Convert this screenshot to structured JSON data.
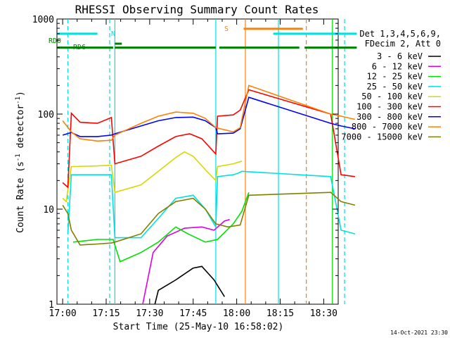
{
  "chart_data": {
    "type": "line",
    "title": "RHESSI Observing Summary Count Rates",
    "xlabel": "Start Time (25-May-10 16:58:02)",
    "ylabel": "Count Rate (s⁻¹ detector⁻¹)",
    "yscale": "log",
    "ylim": [
      1,
      1000
    ],
    "xlim": [
      "16:58:02",
      "18:35:00"
    ],
    "x_ticks": [
      "17:00",
      "17:15",
      "17:30",
      "17:45",
      "18:00",
      "18:15",
      "18:30"
    ],
    "y_ticks": [
      "1",
      "10",
      "100",
      "1000"
    ],
    "legend_header": [
      "Det 1,3,4,5,6,9,",
      "FDecim 2, Att 0"
    ],
    "legend_position": "right",
    "series": [
      {
        "name": "3 - 6 keV",
        "color": "#000000",
        "points": [
          [
            17.53,
            1.0
          ],
          [
            17.55,
            1.4
          ],
          [
            17.65,
            1.8
          ],
          [
            17.75,
            2.4
          ],
          [
            17.8,
            2.5
          ],
          [
            17.87,
            1.8
          ],
          [
            17.93,
            1.2
          ]
        ]
      },
      {
        "name": "6 - 12 keV",
        "color": "#e000e0",
        "points": [
          [
            17.46,
            1.0
          ],
          [
            17.52,
            3.5
          ],
          [
            17.6,
            5.2
          ],
          [
            17.7,
            6.3
          ],
          [
            17.8,
            6.5
          ],
          [
            17.87,
            6.0
          ],
          [
            17.93,
            7.5
          ],
          [
            17.96,
            7.8
          ]
        ]
      },
      {
        "name": "12 - 25 keV",
        "color": "#00e000",
        "points": [
          [
            17.06,
            4.5
          ],
          [
            17.2,
            4.8
          ],
          [
            17.29,
            4.8
          ],
          [
            17.33,
            2.8
          ],
          [
            17.45,
            3.5
          ],
          [
            17.55,
            4.5
          ],
          [
            17.65,
            6.5
          ],
          [
            17.72,
            5.5
          ],
          [
            17.82,
            4.5
          ],
          [
            17.89,
            4.8
          ],
          [
            17.98,
            7.0
          ],
          [
            18.03,
            9.5
          ],
          [
            18.07,
            15.0
          ]
        ]
      },
      {
        "name": "25 - 50 keV",
        "color": "#00e0e0",
        "points": [
          [
            17.03,
            5.5
          ],
          [
            17.05,
            23.0
          ],
          [
            17.2,
            23.0
          ],
          [
            17.28,
            23.0
          ],
          [
            17.3,
            5.0
          ],
          [
            17.45,
            5.0
          ],
          [
            17.55,
            8.0
          ],
          [
            17.65,
            13.0
          ],
          [
            17.75,
            14.0
          ],
          [
            17.82,
            10.0
          ],
          [
            17.88,
            6.5
          ],
          [
            17.89,
            22.0
          ],
          [
            17.98,
            23.0
          ],
          [
            18.01,
            24.0
          ],
          [
            18.03,
            25.0
          ],
          [
            18.54,
            22.0
          ],
          [
            18.6,
            6.0
          ],
          [
            18.68,
            5.5
          ]
        ]
      },
      {
        "name": "50 - 100 keV",
        "color": "#d8d800",
        "points": [
          [
            17.0,
            13.0
          ],
          [
            17.02,
            12.0
          ],
          [
            17.05,
            28.0
          ],
          [
            17.2,
            28.5
          ],
          [
            17.28,
            29.0
          ],
          [
            17.3,
            15.0
          ],
          [
            17.45,
            18.0
          ],
          [
            17.55,
            25.0
          ],
          [
            17.65,
            35.0
          ],
          [
            17.7,
            40.0
          ],
          [
            17.75,
            36.0
          ],
          [
            17.82,
            26.0
          ],
          [
            17.88,
            20.0
          ],
          [
            17.89,
            28.0
          ],
          [
            17.98,
            30.0
          ],
          [
            18.03,
            32.0
          ]
        ]
      },
      {
        "name": "100 - 300 keV",
        "color": "#ff0000",
        "points": [
          [
            17.0,
            19.0
          ],
          [
            17.03,
            17.0
          ],
          [
            17.05,
            102.0
          ],
          [
            17.1,
            82.0
          ],
          [
            17.2,
            80.0
          ],
          [
            17.28,
            92.0
          ],
          [
            17.3,
            30.0
          ],
          [
            17.45,
            36.0
          ],
          [
            17.55,
            46.0
          ],
          [
            17.65,
            58.0
          ],
          [
            17.73,
            62.0
          ],
          [
            17.8,
            55.0
          ],
          [
            17.88,
            38.0
          ],
          [
            17.89,
            95.0
          ],
          [
            17.98,
            98.0
          ],
          [
            18.02,
            110.0
          ],
          [
            18.07,
            180.0
          ],
          [
            18.54,
            100.0
          ],
          [
            18.6,
            23.0
          ],
          [
            18.68,
            22.0
          ]
        ]
      },
      {
        "name": "300 - 800 keV",
        "color": "#0000ff",
        "points": [
          [
            17.0,
            60.0
          ],
          [
            17.05,
            64.0
          ],
          [
            17.1,
            58.0
          ],
          [
            17.2,
            58.0
          ],
          [
            17.28,
            60.0
          ],
          [
            17.3,
            62.0
          ],
          [
            17.45,
            75.0
          ],
          [
            17.55,
            85.0
          ],
          [
            17.65,
            92.0
          ],
          [
            17.75,
            93.0
          ],
          [
            17.82,
            85.0
          ],
          [
            17.88,
            72.0
          ],
          [
            17.89,
            62.0
          ],
          [
            17.98,
            63.0
          ],
          [
            18.02,
            70.0
          ],
          [
            18.07,
            150.0
          ],
          [
            18.54,
            80.0
          ],
          [
            18.6,
            75.0
          ],
          [
            18.68,
            70.0
          ]
        ]
      },
      {
        "name": "800 - 7000 keV",
        "color": "#ff8000",
        "points": [
          [
            17.0,
            85.0
          ],
          [
            17.05,
            65.0
          ],
          [
            17.1,
            55.0
          ],
          [
            17.2,
            52.0
          ],
          [
            17.28,
            53.0
          ],
          [
            17.3,
            60.0
          ],
          [
            17.45,
            80.0
          ],
          [
            17.55,
            95.0
          ],
          [
            17.65,
            105.0
          ],
          [
            17.75,
            102.0
          ],
          [
            17.82,
            90.0
          ],
          [
            17.88,
            72.0
          ],
          [
            17.98,
            65.0
          ],
          [
            18.02,
            72.0
          ],
          [
            18.07,
            200.0
          ],
          [
            18.54,
            100.0
          ],
          [
            18.6,
            95.0
          ],
          [
            18.68,
            88.0
          ]
        ]
      },
      {
        "name": "7000 - 15000 keV",
        "color": "#808000",
        "points": [
          [
            17.0,
            11.0
          ],
          [
            17.03,
            9.0
          ],
          [
            17.05,
            6.0
          ],
          [
            17.1,
            4.2
          ],
          [
            17.2,
            4.3
          ],
          [
            17.28,
            4.4
          ],
          [
            17.3,
            4.5
          ],
          [
            17.45,
            5.5
          ],
          [
            17.55,
            9.0
          ],
          [
            17.65,
            12.0
          ],
          [
            17.75,
            13.0
          ],
          [
            17.82,
            10.0
          ],
          [
            17.88,
            7.0
          ],
          [
            17.95,
            6.5
          ],
          [
            18.02,
            6.8
          ],
          [
            18.07,
            14.0
          ],
          [
            18.54,
            15.0
          ],
          [
            18.6,
            12.0
          ],
          [
            18.68,
            11.0
          ]
        ]
      }
    ],
    "annotations": {
      "left_labels": [
        "RD0",
        "RD6"
      ],
      "night_label": "N",
      "saa_label": "S",
      "bands": [
        {
          "color": "#00e0e0",
          "y": 700,
          "segments": [
            [
              16.97,
              17.2
            ],
            [
              18.21,
              18.69
            ]
          ]
        },
        {
          "color": "#ff8000",
          "y": 790,
          "segments": [
            [
              18.04,
              18.38
            ]
          ]
        },
        {
          "color": "#008000",
          "y": 500,
          "segments": [
            [
              16.97,
              17.29
            ],
            [
              17.3,
              17.88
            ],
            [
              17.9,
              18.36
            ],
            [
              18.39,
              18.69
            ]
          ]
        },
        {
          "color": "#008000",
          "y": 550,
          "segments": [
            [
              17.3,
              17.34
            ]
          ]
        }
      ],
      "vlines": [
        {
          "x": 17.03,
          "color": "#00e0e0",
          "dash": true
        },
        {
          "x": 17.27,
          "color": "#00e0e0",
          "dash": true
        },
        {
          "x": 17.3,
          "color": "#00e0e0",
          "dash": false
        },
        {
          "x": 17.88,
          "color": "#00e0e0",
          "dash": false
        },
        {
          "x": 18.05,
          "color": "#ff8000",
          "dash": false
        },
        {
          "x": 18.24,
          "color": "#00e0e0",
          "dash": false
        },
        {
          "x": 18.4,
          "color": "#ff8000",
          "dash": true
        },
        {
          "x": 18.62,
          "color": "#00e0e0",
          "dash": true
        },
        {
          "x": 18.55,
          "color": "#00e000",
          "dash": false
        }
      ]
    },
    "timestamp": "14-Oct-2021 23:30"
  }
}
